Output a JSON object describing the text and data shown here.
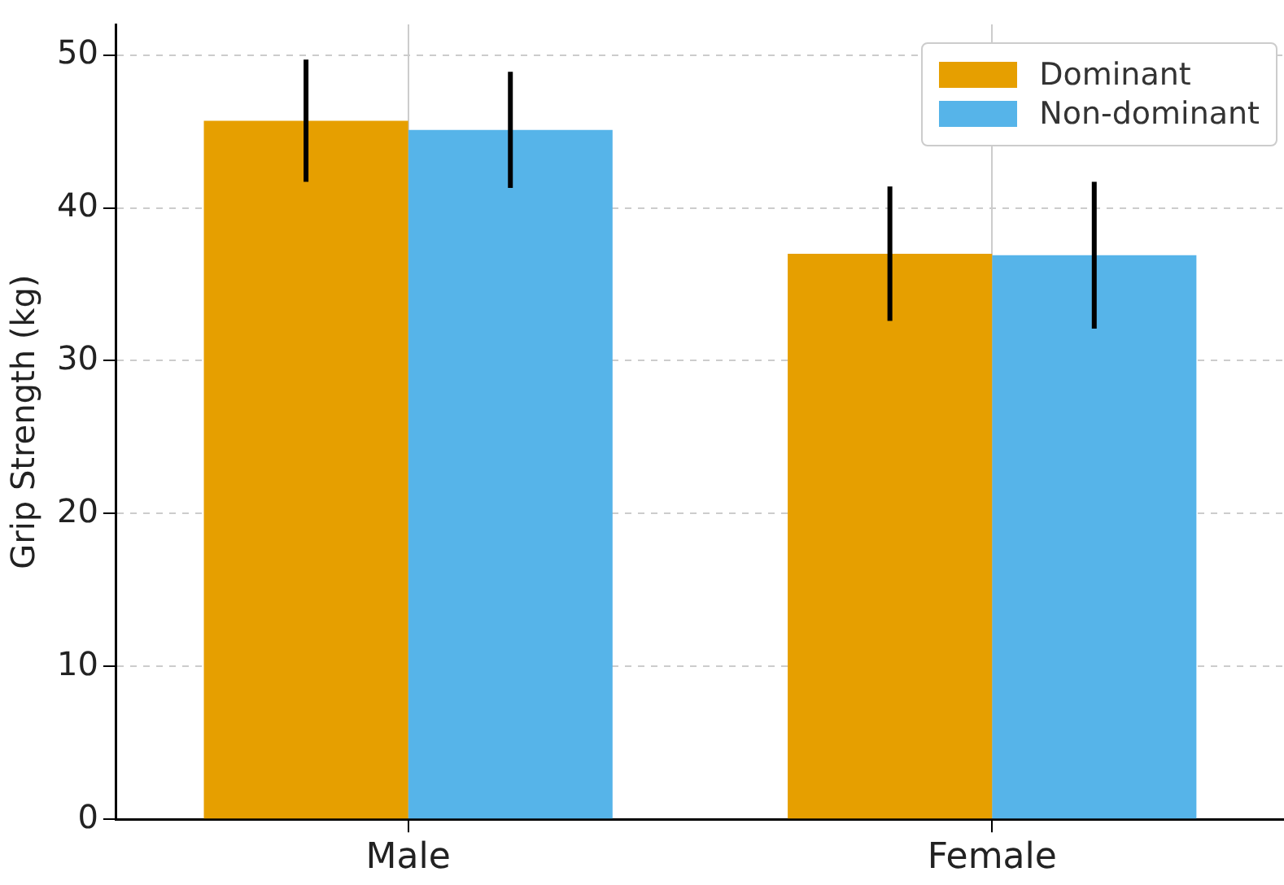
{
  "chart_data": {
    "type": "bar",
    "ylabel": "Grip Strength (kg)",
    "categories": [
      "Male",
      "Female"
    ],
    "series": [
      {
        "name": "Dominant",
        "color": "#e69f00",
        "values": [
          45.7,
          37.0
        ],
        "errors": [
          4.0,
          4.4
        ]
      },
      {
        "name": "Non-dominant",
        "color": "#56b4e9",
        "values": [
          45.1,
          36.9
        ],
        "errors": [
          3.8,
          4.8
        ]
      }
    ],
    "ylim": [
      0,
      52
    ],
    "yticks": [
      0,
      10,
      20,
      30,
      40,
      50
    ],
    "grid": true,
    "legend": "top right"
  }
}
